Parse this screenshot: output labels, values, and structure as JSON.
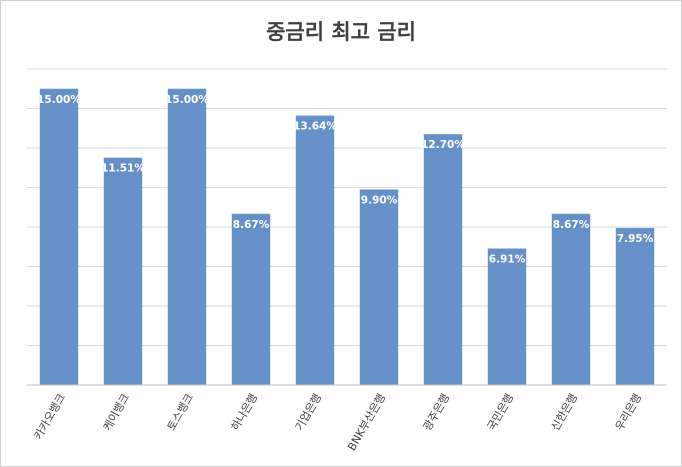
{
  "chart_data": {
    "type": "bar",
    "title": "중금리 최고 금리",
    "categories": [
      "카카오뱅크",
      "케이뱅크",
      "토스뱅크",
      "하나은행",
      "기업은행",
      "BNK부산은행",
      "광주은행",
      "국민은행",
      "신한은행",
      "우리은행"
    ],
    "values": [
      15.0,
      11.51,
      15.0,
      8.67,
      13.64,
      9.9,
      12.7,
      6.91,
      8.67,
      7.95
    ],
    "value_labels": [
      "15.00%",
      "11.51%",
      "15.00%",
      "8.67%",
      "13.64%",
      "9.90%",
      "12.70%",
      "6.91%",
      "8.67%",
      "7.95%"
    ],
    "color": "#6590c8",
    "ylim": [
      0,
      16
    ],
    "yticks": [
      0,
      2,
      4,
      6,
      8,
      10,
      12,
      14,
      16
    ],
    "grid": true
  }
}
